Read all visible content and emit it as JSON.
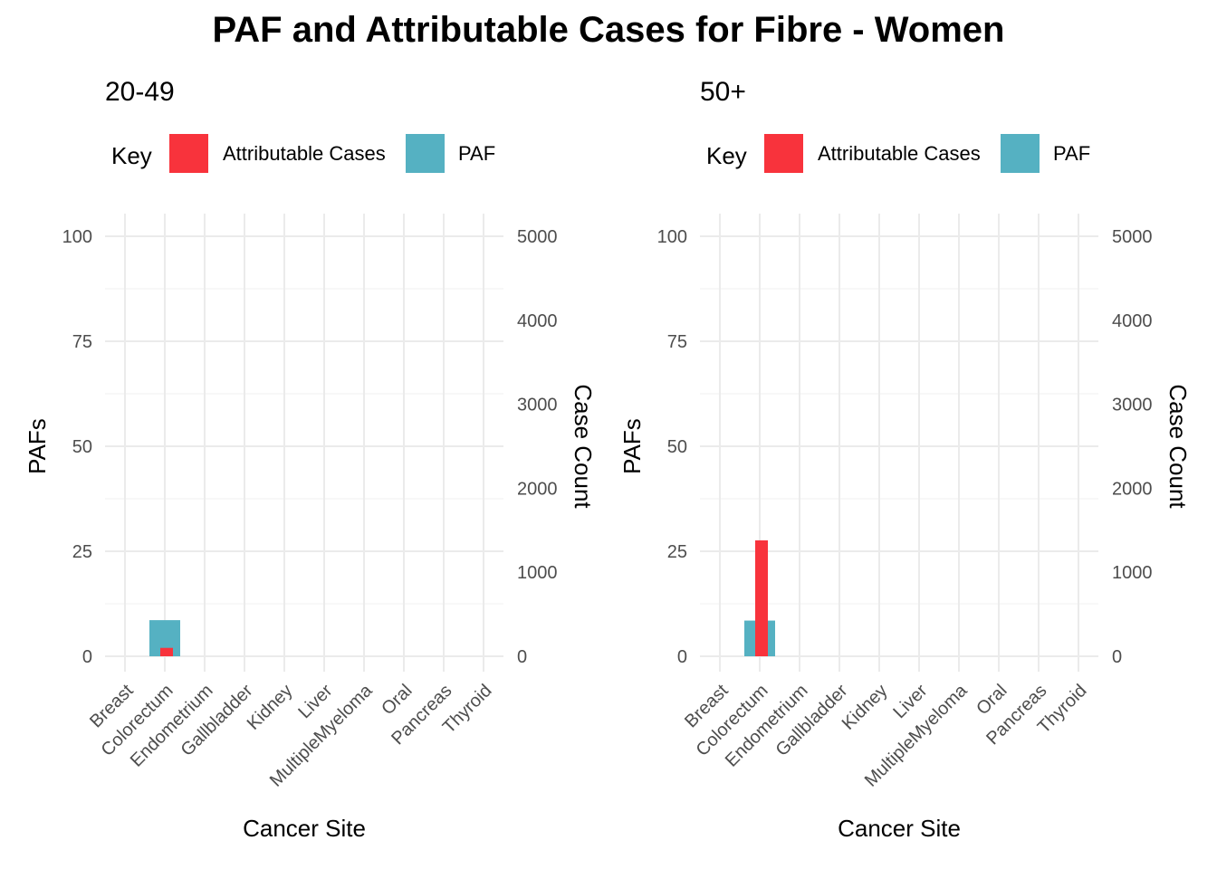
{
  "title": "PAF and Attributable Cases for Fibre - Women",
  "legend": {
    "title": "Key",
    "items": [
      {
        "label": "Attributable Cases",
        "color": "#f8333c"
      },
      {
        "label": "PAF",
        "color": "#55b1c2"
      }
    ]
  },
  "chart_data": [
    {
      "type": "bar",
      "title": "20-49",
      "xlabel": "Cancer Site",
      "ylabel": "PAFs",
      "y2label": "Case Count",
      "categories": [
        "Breast",
        "Colorectum",
        "Endometrium",
        "Gallbladder",
        "Kidney",
        "Liver",
        "MultipleMyeloma",
        "Oral",
        "Pancreas",
        "Thyroid"
      ],
      "ylim": [
        0,
        100
      ],
      "y2lim": [
        0,
        5000
      ],
      "yticks": [
        0,
        25,
        50,
        75,
        100
      ],
      "y2ticks": [
        0,
        1000,
        2000,
        3000,
        4000,
        5000
      ],
      "grid": true,
      "series": [
        {
          "name": "PAF",
          "axis": "primary",
          "color": "#55b1c2",
          "values": [
            0,
            8.6,
            0,
            0,
            0,
            0,
            0,
            0,
            0,
            0
          ]
        },
        {
          "name": "Attributable Cases",
          "axis": "secondary",
          "color": "#f8333c",
          "values": [
            0,
            100,
            0,
            0,
            0,
            0,
            0,
            0,
            0,
            0
          ]
        }
      ]
    },
    {
      "type": "bar",
      "title": "50+",
      "xlabel": "Cancer Site",
      "ylabel": "PAFs",
      "y2label": "Case Count",
      "categories": [
        "Breast",
        "Colorectum",
        "Endometrium",
        "Gallbladder",
        "Kidney",
        "Liver",
        "MultipleMyeloma",
        "Oral",
        "Pancreas",
        "Thyroid"
      ],
      "ylim": [
        0,
        100
      ],
      "y2lim": [
        0,
        5000
      ],
      "yticks": [
        0,
        25,
        50,
        75,
        100
      ],
      "y2ticks": [
        0,
        1000,
        2000,
        3000,
        4000,
        5000
      ],
      "grid": true,
      "series": [
        {
          "name": "PAF",
          "axis": "primary",
          "color": "#55b1c2",
          "values": [
            0,
            8.5,
            0,
            0,
            0,
            0,
            0,
            0,
            0,
            0
          ]
        },
        {
          "name": "Attributable Cases",
          "axis": "secondary",
          "color": "#f8333c",
          "values": [
            0,
            1380,
            0,
            0,
            0,
            0,
            0,
            0,
            0,
            0
          ]
        }
      ]
    }
  ]
}
